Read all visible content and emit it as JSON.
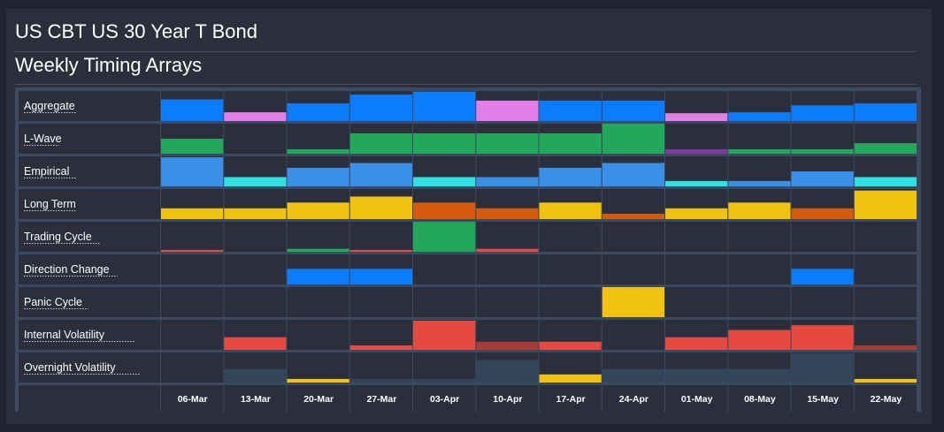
{
  "header": {
    "title": "US CBT US 30 Year T Bond",
    "subtitle": "Weekly Timing Arrays"
  },
  "chart_data": {
    "type": "heatmap",
    "categories": [
      "06-Mar",
      "13-Mar",
      "20-Mar",
      "27-Mar",
      "03-Apr",
      "10-Apr",
      "17-Apr",
      "24-Apr",
      "01-May",
      "08-May",
      "15-May",
      "22-May"
    ],
    "value_scale": "relative bar height within each row, 0 to 1",
    "series": [
      {
        "name": "Aggregate",
        "values": [
          0.72,
          0.29,
          0.59,
          0.88,
          0.98,
          0.68,
          0.68,
          0.68,
          0.26,
          0.29,
          0.52,
          0.59
        ],
        "colors": [
          "#0b7cff",
          "#e27ee8",
          "#0b7cff",
          "#0b7cff",
          "#0b7cff",
          "#e27ee8",
          "#0b7cff",
          "#0b7cff",
          "#e27ee8",
          "#0b7cff",
          "#0b7cff",
          "#0b7cff"
        ]
      },
      {
        "name": "L-Wave",
        "values": [
          0.5,
          0,
          0.15,
          0.68,
          0.68,
          0.68,
          0.68,
          1.0,
          0.15,
          0.15,
          0.15,
          0.35
        ],
        "colors": [
          "#22a85a",
          "#22a85a",
          "#22a85a",
          "#22a85a",
          "#22a85a",
          "#22a85a",
          "#22a85a",
          "#22a85a",
          "#7e3aa0",
          "#22a85a",
          "#22a85a",
          "#22a85a"
        ]
      },
      {
        "name": "Empirical",
        "values": [
          0.97,
          0.31,
          0.62,
          0.78,
          0.31,
          0.31,
          0.62,
          0.78,
          0.18,
          0.18,
          0.5,
          0.31
        ],
        "colors": [
          "#3a8fe8",
          "#2ee2e0",
          "#3a8fe8",
          "#3a8fe8",
          "#2ee2e0",
          "#3a8fe8",
          "#3a8fe8",
          "#3a8fe8",
          "#2ee2e0",
          "#3a8fe8",
          "#3a8fe8",
          "#2ee2e0"
        ]
      },
      {
        "name": "Long Term",
        "values": [
          0.36,
          0.36,
          0.55,
          0.75,
          0.55,
          0.36,
          0.55,
          0.18,
          0.36,
          0.55,
          0.36,
          0.95
        ],
        "colors": [
          "#f2c30e",
          "#f2c30e",
          "#f2c30e",
          "#f2c30e",
          "#d45a0c",
          "#d45a0c",
          "#f2c30e",
          "#d45a0c",
          "#f2c30e",
          "#f2c30e",
          "#d45a0c",
          "#f2c30e"
        ]
      },
      {
        "name": "Trading Cycle",
        "values": [
          0.06,
          0,
          0.1,
          0.06,
          1.0,
          0.1,
          0,
          0,
          0,
          0,
          0,
          0
        ],
        "colors": [
          "#e6493f",
          "#e6493f",
          "#22a85a",
          "#e6493f",
          "#22a85a",
          "#e6493f",
          "#e6493f",
          "#e6493f",
          "#e6493f",
          "#e6493f",
          "#e6493f",
          "#e6493f"
        ]
      },
      {
        "name": "Direction Change",
        "values": [
          0,
          0,
          0.52,
          0.52,
          0,
          0,
          0,
          0,
          0,
          0,
          0.52,
          0
        ],
        "colors": [
          "#0b7cff",
          "#0b7cff",
          "#0b7cff",
          "#0b7cff",
          "#0b7cff",
          "#0b7cff",
          "#0b7cff",
          "#0b7cff",
          "#0b7cff",
          "#0b7cff",
          "#0b7cff",
          "#0b7cff"
        ]
      },
      {
        "name": "Panic Cycle",
        "values": [
          0,
          0,
          0,
          0,
          0,
          0,
          0,
          1.0,
          0,
          0,
          0,
          0
        ],
        "colors": [
          "#f2c30e",
          "#f2c30e",
          "#f2c30e",
          "#f2c30e",
          "#f2c30e",
          "#f2c30e",
          "#f2c30e",
          "#f2c30e",
          "#f2c30e",
          "#f2c30e",
          "#f2c30e",
          "#f2c30e"
        ]
      },
      {
        "name": "Internal Volatility",
        "values": [
          0,
          0.42,
          0,
          0.15,
          0.97,
          0.27,
          0.27,
          0,
          0.42,
          0.66,
          0.82,
          0.15
        ],
        "colors": [
          "#e6493f",
          "#e6493f",
          "#e6493f",
          "#e6493f",
          "#e6493f",
          "#a93b37",
          "#e6493f",
          "#e6493f",
          "#e6493f",
          "#e6493f",
          "#e6493f",
          "#a93b37"
        ]
      },
      {
        "name": "Overnight Volatility",
        "values": [
          0,
          0.45,
          0.12,
          0.12,
          0.12,
          0.75,
          0.27,
          0.45,
          0.45,
          0.45,
          0.97,
          0.12
        ],
        "colors": [
          "#334559",
          "#334559",
          "#f2c30e",
          "#334559",
          "#334559",
          "#334559",
          "#f2c30e",
          "#334559",
          "#334559",
          "#334559",
          "#334559",
          "#f2c30e"
        ]
      }
    ],
    "legend": "none"
  }
}
